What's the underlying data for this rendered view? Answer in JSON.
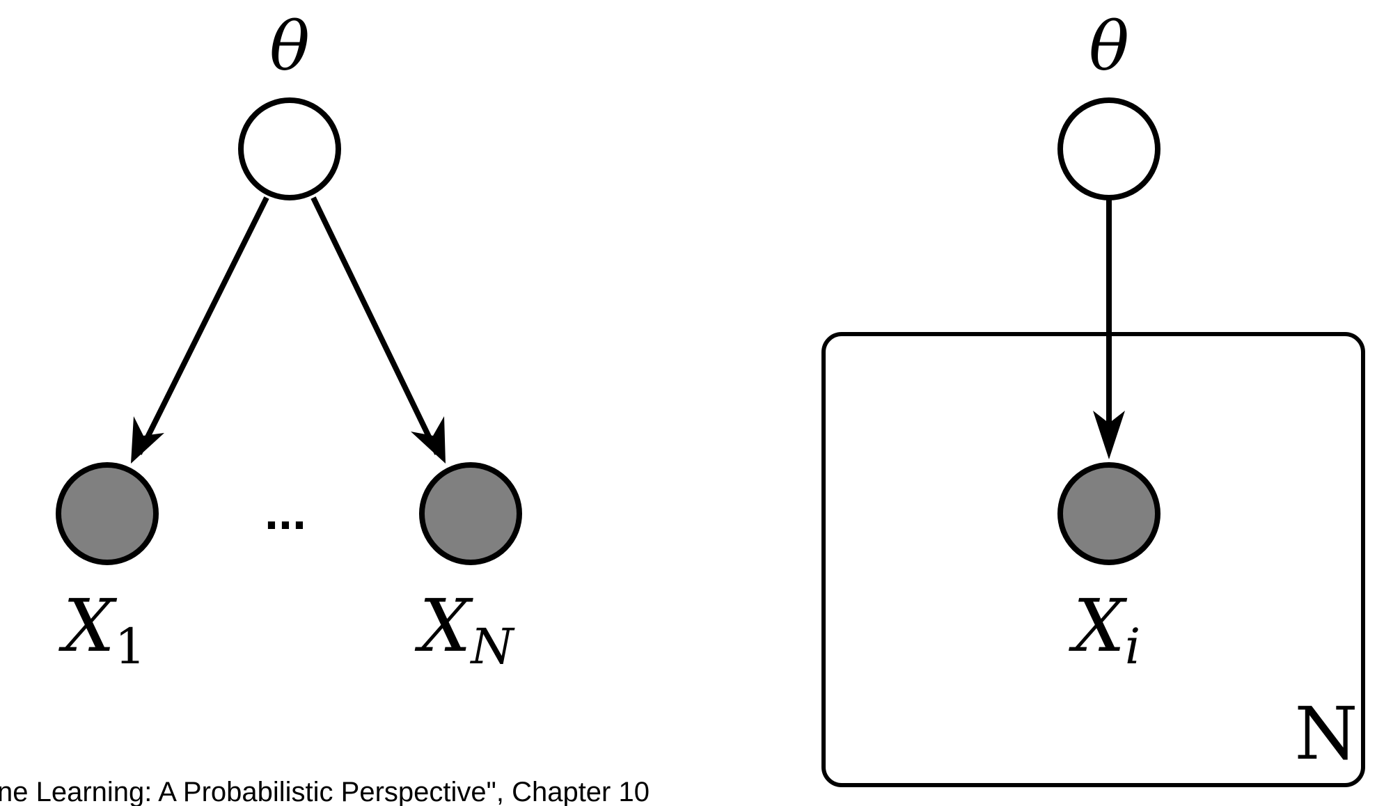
{
  "colors": {
    "stroke": "#000000",
    "background": "#ffffff",
    "observed_fill": "#808080",
    "latent_fill": "#ffffff"
  },
  "unrolled": {
    "parent_label": "θ",
    "child_first_label": "X",
    "child_first_subscript": "1",
    "child_last_label": "X",
    "child_last_subscript": "N",
    "ellipsis": "..."
  },
  "plate": {
    "parent_label": "θ",
    "child_label": "X",
    "child_subscript": "i",
    "plate_label": "N"
  },
  "caption": "ne Learning: A Probabilistic Perspective\", Chapter 10"
}
